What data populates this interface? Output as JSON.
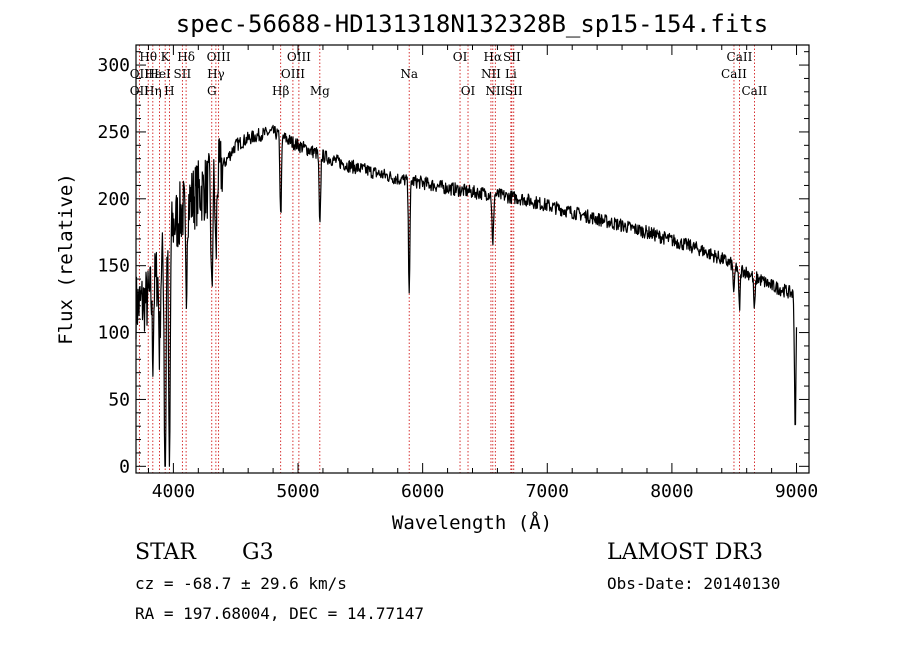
{
  "chart_data": {
    "type": "line",
    "title": "spec-56688-HD131318N132328B_sp15-154.fits",
    "xlabel": "Wavelength (Å)",
    "ylabel": "Flux (relative)",
    "xlim": [
      3700,
      9100
    ],
    "ylim": [
      -5,
      315
    ],
    "xticks": [
      4000,
      5000,
      6000,
      7000,
      8000,
      9000
    ],
    "yticks": [
      0,
      50,
      100,
      150,
      200,
      250,
      300
    ],
    "xtick_labels": [
      "4000",
      "5000",
      "6000",
      "7000",
      "8000",
      "9000"
    ],
    "ytick_labels": [
      "0",
      "50",
      "100",
      "150",
      "200",
      "250",
      "300"
    ],
    "spectrum": {
      "x_range": [
        3700,
        9000
      ],
      "continuum_knots": {
        "x": [
          3700,
          3800,
          3900,
          4000,
          4100,
          4200,
          4300,
          4400,
          4500,
          4600,
          4700,
          4800,
          4900,
          5000,
          5200,
          5400,
          5600,
          5800,
          6000,
          6200,
          6400,
          6600,
          6800,
          7000,
          7400,
          7800,
          8200,
          8400,
          8600,
          8800,
          9000
        ],
        "y": [
          120,
          125,
          150,
          180,
          195,
          205,
          210,
          225,
          240,
          245,
          248,
          250,
          245,
          240,
          232,
          225,
          220,
          215,
          212,
          208,
          205,
          203,
          200,
          195,
          185,
          175,
          163,
          155,
          145,
          135,
          128
        ]
      },
      "absorption_dips": [
        {
          "x": 3934,
          "depth": 200
        },
        {
          "x": 3968,
          "depth": 190
        },
        {
          "x": 3889,
          "depth": 60
        },
        {
          "x": 3835,
          "depth": 50
        },
        {
          "x": 4102,
          "depth": 70
        },
        {
          "x": 4308,
          "depth": 90
        },
        {
          "x": 4341,
          "depth": 60
        },
        {
          "x": 4861,
          "depth": 60
        },
        {
          "x": 5175,
          "depth": 55
        },
        {
          "x": 5892,
          "depth": 80
        },
        {
          "x": 6563,
          "depth": 40
        },
        {
          "x": 8498,
          "depth": 20
        },
        {
          "x": 8542,
          "depth": 30
        },
        {
          "x": 8662,
          "depth": 25
        },
        {
          "x": 8990,
          "depth": 100
        }
      ],
      "noise_amplitude": 5
    },
    "spectral_lines": [
      {
        "wavelength": 3727,
        "rows": [
          {
            "row": 1,
            "text": "OII"
          },
          {
            "row": 2,
            "text": "OII"
          }
        ]
      },
      {
        "wavelength": 3798,
        "rows": [
          {
            "row": 0,
            "text": "Hθ"
          }
        ]
      },
      {
        "wavelength": 3835,
        "rows": [
          {
            "row": 1,
            "text": "Hε"
          },
          {
            "row": 2,
            "text": "Hη"
          }
        ]
      },
      {
        "wavelength": 3889,
        "rows": [
          {
            "row": 1,
            "text": "HeI"
          }
        ]
      },
      {
        "wavelength": 3934,
        "rows": [
          {
            "row": 0,
            "text": "K"
          }
        ]
      },
      {
        "wavelength": 3968,
        "rows": [
          {
            "row": 2,
            "text": "H"
          }
        ]
      },
      {
        "wavelength": 4072,
        "rows": [
          {
            "row": 1,
            "text": "SII"
          }
        ]
      },
      {
        "wavelength": 4102,
        "rows": [
          {
            "row": 0,
            "text": "Hδ"
          }
        ]
      },
      {
        "wavelength": 4308,
        "rows": [
          {
            "row": 2,
            "text": "G"
          }
        ]
      },
      {
        "wavelength": 4341,
        "rows": [
          {
            "row": 1,
            "text": "Hγ"
          }
        ]
      },
      {
        "wavelength": 4363,
        "rows": [
          {
            "row": 0,
            "text": "OIII"
          }
        ]
      },
      {
        "wavelength": 4861,
        "rows": [
          {
            "row": 2,
            "text": "Hβ"
          }
        ]
      },
      {
        "wavelength": 4959,
        "rows": [
          {
            "row": 1,
            "text": "OIII"
          }
        ]
      },
      {
        "wavelength": 5007,
        "rows": [
          {
            "row": 0,
            "text": "OIII"
          }
        ]
      },
      {
        "wavelength": 5175,
        "rows": [
          {
            "row": 2,
            "text": "Mg"
          }
        ]
      },
      {
        "wavelength": 5892,
        "rows": [
          {
            "row": 1,
            "text": "Na"
          }
        ]
      },
      {
        "wavelength": 6300,
        "rows": [
          {
            "row": 0,
            "text": "OI"
          }
        ]
      },
      {
        "wavelength": 6364,
        "rows": [
          {
            "row": 2,
            "text": "OI"
          }
        ]
      },
      {
        "wavelength": 6548,
        "rows": [
          {
            "row": 1,
            "text": "NII"
          }
        ]
      },
      {
        "wavelength": 6563,
        "rows": [
          {
            "row": 0,
            "text": "Hα"
          }
        ]
      },
      {
        "wavelength": 6583,
        "rows": [
          {
            "row": 2,
            "text": "NII"
          }
        ]
      },
      {
        "wavelength": 6708,
        "rows": [
          {
            "row": 1,
            "text": "Li"
          }
        ]
      },
      {
        "wavelength": 6716,
        "rows": [
          {
            "row": 0,
            "text": "SII"
          }
        ]
      },
      {
        "wavelength": 6731,
        "rows": [
          {
            "row": 2,
            "text": "SII"
          }
        ]
      },
      {
        "wavelength": 8498,
        "rows": [
          {
            "row": 1,
            "text": "CaII"
          }
        ]
      },
      {
        "wavelength": 8542,
        "rows": [
          {
            "row": 0,
            "text": "CaII"
          }
        ]
      },
      {
        "wavelength": 8662,
        "rows": [
          {
            "row": 2,
            "text": "CaII"
          }
        ]
      }
    ],
    "line_color": "#000000",
    "marker_color": "#cc0000"
  },
  "info": {
    "class": "STAR",
    "subclass": "G3",
    "survey": "LAMOST DR3",
    "cz": "cz = -68.7 ± 29.6 km/s",
    "obs_date": "Obs-Date: 20140130",
    "coords": "RA = 197.68004, DEC =  14.77147"
  }
}
